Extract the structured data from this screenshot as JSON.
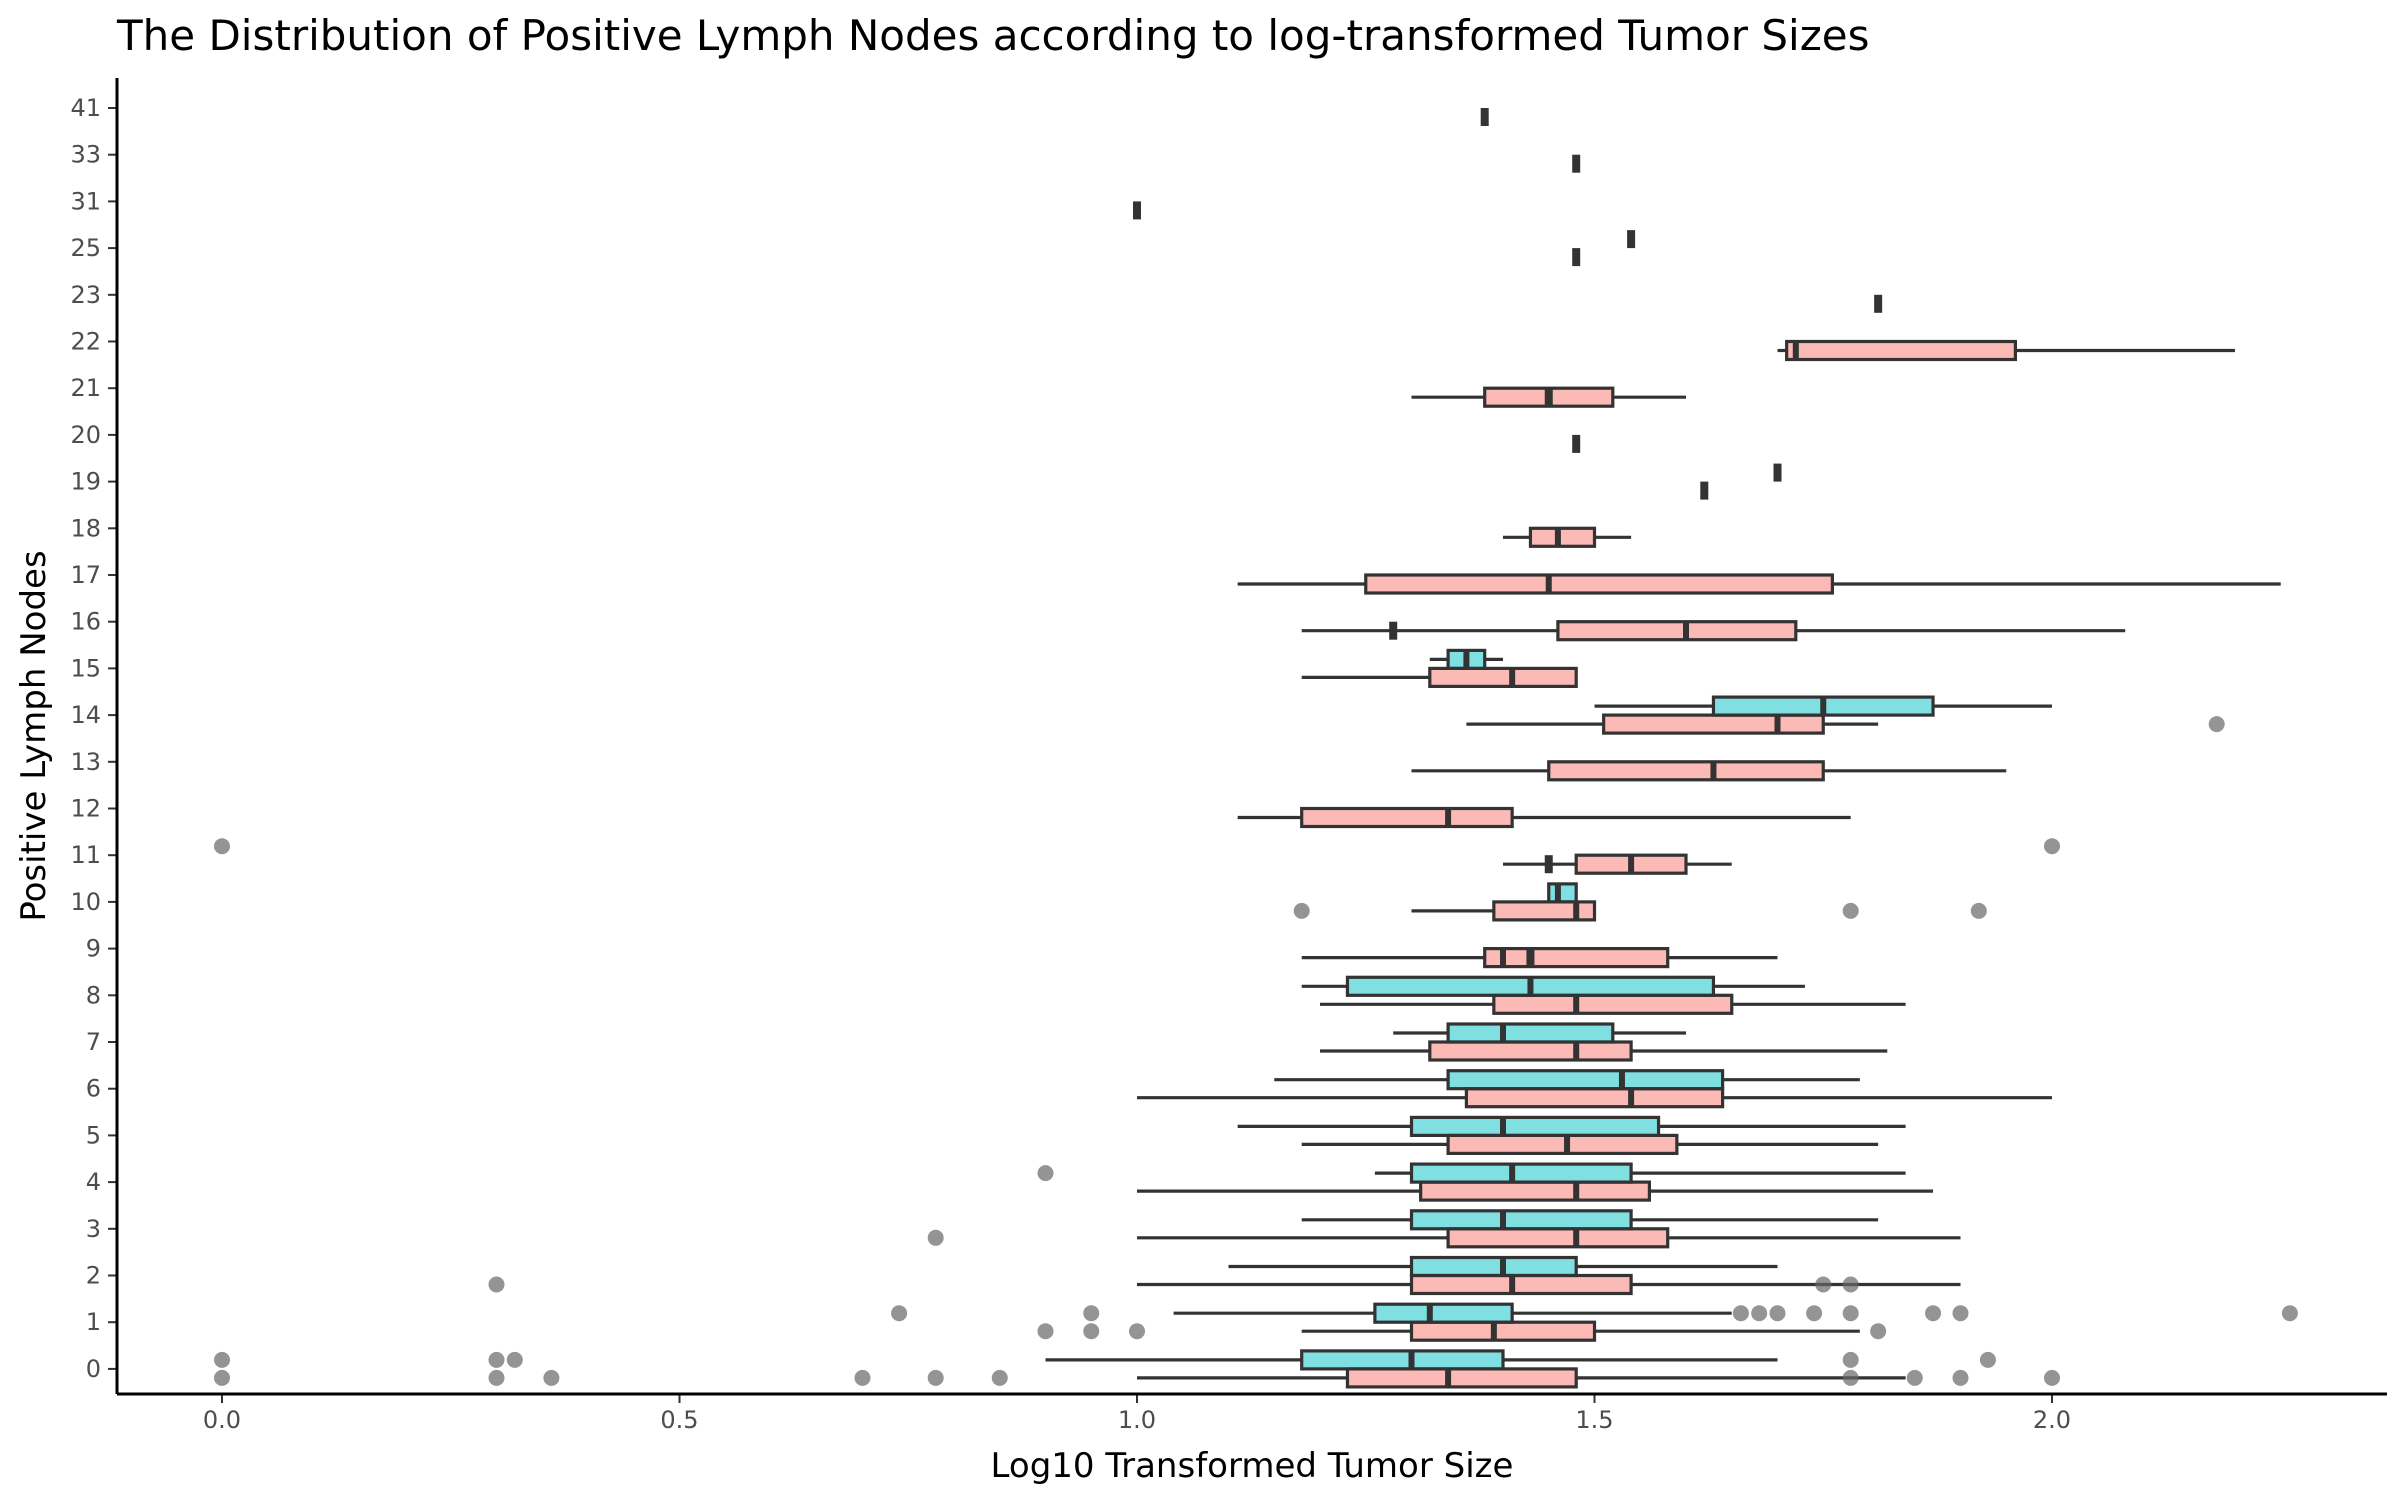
{
  "chart_data": {
    "type": "boxplot",
    "title": "The Distribution of Positive Lymph Nodes according to log-transformed Tumor Sizes",
    "xlabel": "Log10 Transformed Tumor Size",
    "ylabel": "Positive Lymph Nodes",
    "xlim": [
      -0.12,
      2.37
    ],
    "x_ticks": [
      0.0,
      0.5,
      1.0,
      1.5,
      2.0
    ],
    "x_tick_labels": [
      "0.0",
      "0.5",
      "1.0",
      "1.5",
      "2.0"
    ],
    "categories": [
      "0",
      "1",
      "2",
      "3",
      "4",
      "5",
      "6",
      "7",
      "8",
      "9",
      "10",
      "11",
      "12",
      "13",
      "14",
      "15",
      "16",
      "17",
      "18",
      "19",
      "20",
      "21",
      "22",
      "23",
      "25",
      "31",
      "33",
      "41"
    ],
    "grid": false,
    "legend": "none",
    "group_colors": {
      "pink": "#F8766D",
      "cyan": "#00BFC4"
    },
    "box_fill_alpha": 0.5,
    "series": [
      {
        "group": "pink",
        "boxes": [
          {
            "cat": "0",
            "lw": 1.0,
            "q1": 1.23,
            "med": 1.34,
            "q3": 1.48,
            "uw": 1.84
          },
          {
            "cat": "1",
            "lw": 1.18,
            "q1": 1.3,
            "med": 1.39,
            "q3": 1.5,
            "uw": 1.79
          },
          {
            "cat": "2",
            "lw": 1.0,
            "q1": 1.3,
            "med": 1.41,
            "q3": 1.54,
            "uw": 1.9
          },
          {
            "cat": "3",
            "lw": 1.0,
            "q1": 1.34,
            "med": 1.48,
            "q3": 1.58,
            "uw": 1.9
          },
          {
            "cat": "4",
            "lw": 1.0,
            "q1": 1.31,
            "med": 1.48,
            "q3": 1.56,
            "uw": 1.87
          },
          {
            "cat": "5",
            "lw": 1.18,
            "q1": 1.34,
            "med": 1.47,
            "q3": 1.59,
            "uw": 1.81
          },
          {
            "cat": "6",
            "lw": 1.0,
            "q1": 1.36,
            "med": 1.54,
            "q3": 1.64,
            "uw": 2.0
          },
          {
            "cat": "7",
            "lw": 1.2,
            "q1": 1.32,
            "med": 1.48,
            "q3": 1.54,
            "uw": 1.82
          },
          {
            "cat": "8",
            "lw": 1.2,
            "q1": 1.39,
            "med": 1.48,
            "q3": 1.65,
            "uw": 1.84
          },
          {
            "cat": "9",
            "lw": 1.18,
            "q1": 1.38,
            "med": 1.4,
            "q3": 1.58,
            "uw": 1.7
          },
          {
            "cat": "10",
            "lw": 1.3,
            "q1": 1.39,
            "med": 1.48,
            "q3": 1.5,
            "uw": 1.5
          },
          {
            "cat": "11",
            "lw": 1.4,
            "q1": 1.48,
            "med": 1.54,
            "q3": 1.6,
            "uw": 1.65
          },
          {
            "cat": "12",
            "lw": 1.11,
            "q1": 1.18,
            "med": 1.34,
            "q3": 1.41,
            "uw": 1.78
          },
          {
            "cat": "13",
            "lw": 1.3,
            "q1": 1.45,
            "med": 1.63,
            "q3": 1.75,
            "uw": 1.95
          },
          {
            "cat": "14",
            "lw": 1.36,
            "q1": 1.51,
            "med": 1.7,
            "q3": 1.75,
            "uw": 1.81
          },
          {
            "cat": "15",
            "lw": 1.18,
            "q1": 1.32,
            "med": 1.41,
            "q3": 1.48,
            "uw": 1.48
          },
          {
            "cat": "16",
            "lw": 1.18,
            "q1": 1.46,
            "med": 1.6,
            "q3": 1.72,
            "uw": 2.08
          },
          {
            "cat": "17",
            "lw": 1.11,
            "q1": 1.25,
            "med": 1.45,
            "q3": 1.76,
            "uw": 2.25
          },
          {
            "cat": "18",
            "lw": 1.4,
            "q1": 1.43,
            "med": 1.46,
            "q3": 1.5,
            "uw": 1.54
          },
          {
            "cat": "21",
            "lw": 1.3,
            "q1": 1.38,
            "med": 1.45,
            "q3": 1.52,
            "uw": 1.6
          },
          {
            "cat": "22",
            "lw": 1.7,
            "q1": 1.71,
            "med": 1.72,
            "q3": 1.96,
            "uw": 2.2
          }
        ],
        "points": [
          {
            "cat": "9",
            "x": 1.43
          },
          {
            "cat": "11",
            "x": 1.45
          },
          {
            "cat": "16",
            "x": 1.28
          },
          {
            "cat": "19",
            "x": 1.62
          },
          {
            "cat": "20",
            "x": 1.48
          },
          {
            "cat": "21",
            "x": 1.45
          },
          {
            "cat": "23",
            "x": 1.81
          },
          {
            "cat": "25",
            "x": 1.48
          },
          {
            "cat": "31",
            "x": 1.0
          },
          {
            "cat": "33",
            "x": 1.48
          },
          {
            "cat": "41",
            "x": 1.38
          }
        ],
        "outliers": [
          {
            "cat": "0",
            "x": [
              0.0,
              0.3,
              0.36,
              0.7,
              0.78,
              0.85,
              1.78,
              1.85,
              1.9,
              2.0
            ]
          },
          {
            "cat": "1",
            "x": [
              0.9,
              0.95,
              1.0,
              1.81
            ]
          },
          {
            "cat": "2",
            "x": [
              0.3,
              1.75,
              1.78
            ]
          },
          {
            "cat": "3",
            "x": [
              0.78
            ]
          },
          {
            "cat": "10",
            "x": [
              1.18,
              1.78,
              1.92
            ]
          },
          {
            "cat": "14",
            "x": [
              2.18
            ]
          }
        ]
      },
      {
        "group": "cyan",
        "boxes": [
          {
            "cat": "0",
            "lw": 0.9,
            "q1": 1.18,
            "med": 1.3,
            "q3": 1.4,
            "uw": 1.7
          },
          {
            "cat": "1",
            "lw": 1.04,
            "q1": 1.26,
            "med": 1.32,
            "q3": 1.41,
            "uw": 1.65
          },
          {
            "cat": "2",
            "lw": 1.1,
            "q1": 1.3,
            "med": 1.4,
            "q3": 1.48,
            "uw": 1.7
          },
          {
            "cat": "3",
            "lw": 1.18,
            "q1": 1.3,
            "med": 1.4,
            "q3": 1.54,
            "uw": 1.81
          },
          {
            "cat": "4",
            "lw": 1.26,
            "q1": 1.3,
            "med": 1.41,
            "q3": 1.54,
            "uw": 1.84
          },
          {
            "cat": "5",
            "lw": 1.11,
            "q1": 1.3,
            "med": 1.4,
            "q3": 1.57,
            "uw": 1.84
          },
          {
            "cat": "6",
            "lw": 1.15,
            "q1": 1.34,
            "med": 1.53,
            "q3": 1.64,
            "uw": 1.79
          },
          {
            "cat": "7",
            "lw": 1.28,
            "q1": 1.34,
            "med": 1.4,
            "q3": 1.52,
            "uw": 1.6
          },
          {
            "cat": "8",
            "lw": 1.18,
            "q1": 1.23,
            "med": 1.43,
            "q3": 1.63,
            "uw": 1.73
          },
          {
            "cat": "10",
            "lw": 1.45,
            "q1": 1.45,
            "med": 1.46,
            "q3": 1.48,
            "uw": 1.48
          },
          {
            "cat": "14",
            "lw": 1.5,
            "q1": 1.63,
            "med": 1.75,
            "q3": 1.87,
            "uw": 2.0
          },
          {
            "cat": "15",
            "lw": 1.32,
            "q1": 1.34,
            "med": 1.36,
            "q3": 1.38,
            "uw": 1.4
          }
        ],
        "points": [
          {
            "cat": "19",
            "x": 1.7
          },
          {
            "cat": "25",
            "x": 1.54
          }
        ],
        "outliers": [
          {
            "cat": "0",
            "x": [
              0.0,
              0.3,
              0.32,
              1.78,
              1.93
            ]
          },
          {
            "cat": "1",
            "x": [
              0.74,
              0.95,
              1.66,
              1.68,
              1.7,
              1.74,
              1.78,
              1.87,
              1.9,
              2.26
            ]
          },
          {
            "cat": "4",
            "x": [
              0.9
            ]
          },
          {
            "cat": "11",
            "x": [
              0.0,
              2.0
            ]
          }
        ]
      }
    ]
  }
}
